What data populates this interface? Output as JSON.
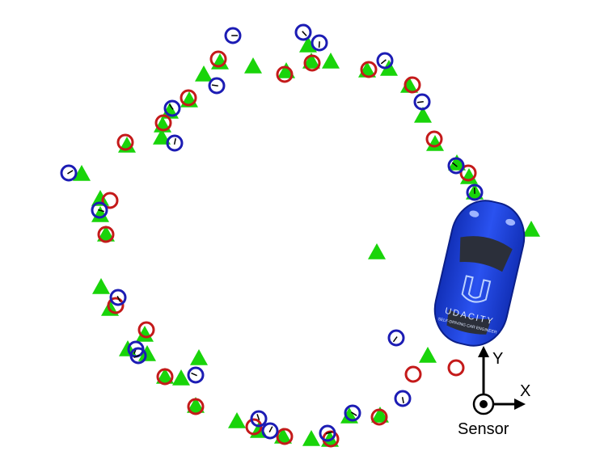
{
  "colors": {
    "background": "#ffffff",
    "lidar_marker": "#c41a1a",
    "radar_marker": "#1c1cb4",
    "ground_truth_marker": "#19d40a",
    "car_body": "#1d3bd6",
    "axis": "#000000"
  },
  "sensor": {
    "label": "Sensor",
    "x_axis_label": "X",
    "y_axis_label": "Y",
    "icon": "sensor-origin-icon"
  },
  "car": {
    "brand": "UDACITY",
    "tagline": "SELF-DRIVING CAR ENGINEER"
  },
  "legend_semantics": {
    "red_circle": "lidar-measurement",
    "blue_circle_with_arrow": "radar-measurement",
    "green_triangle": "ground-truth-estimate"
  }
}
